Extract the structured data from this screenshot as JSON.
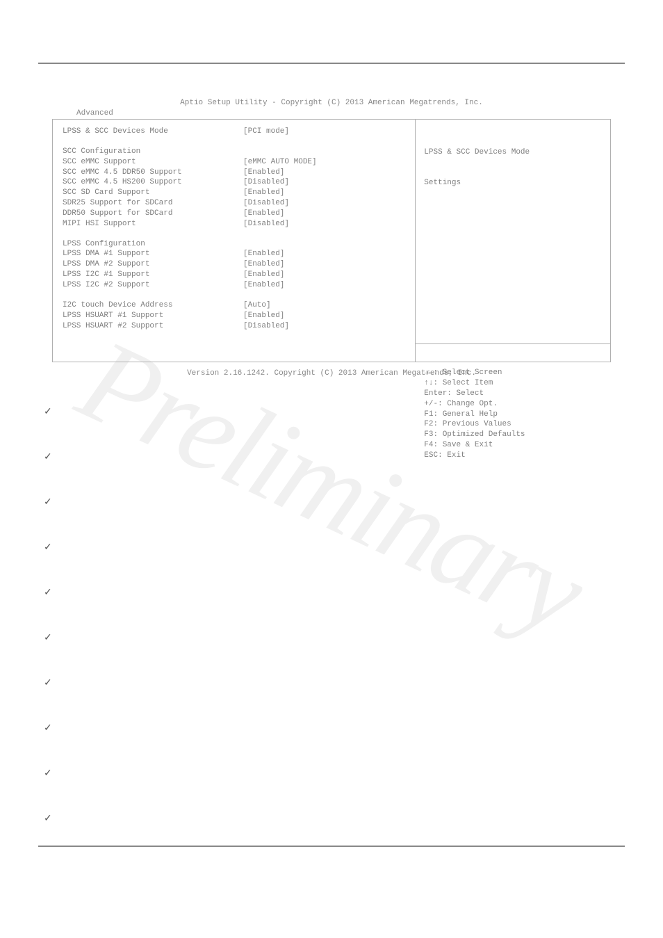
{
  "bios": {
    "title": "Aptio Setup Utility - Copyright (C) 2013 American Megatrends, Inc.",
    "tab": "Advanced",
    "version": "Version 2.16.1242. Copyright (C) 2013 American Megatrends, Inc.",
    "help_title_line1": "LPSS & SCC Devices Mode",
    "help_title_line2": "Settings",
    "rows": [
      {
        "label": "LPSS & SCC Devices Mode",
        "value": "[PCI mode]"
      },
      {
        "blank": true
      },
      {
        "label": "SCC Configuration",
        "value": ""
      },
      {
        "label": "SCC eMMC Support",
        "value": "[eMMC AUTO MODE]"
      },
      {
        "label": "SCC eMMC 4.5 DDR50 Support",
        "value": "[Enabled]"
      },
      {
        "label": "SCC eMMC 4.5 HS200 Support",
        "value": "[Disabled]"
      },
      {
        "label": "SCC SD Card Support",
        "value": "[Enabled]"
      },
      {
        "label": "SDR25 Support for SDCard",
        "value": "[Disabled]"
      },
      {
        "label": "DDR50 Support for SDCard",
        "value": "[Enabled]"
      },
      {
        "label": "MIPI HSI Support",
        "value": "[Disabled]"
      },
      {
        "blank": true
      },
      {
        "label": "LPSS Configuration",
        "value": ""
      },
      {
        "label": "LPSS DMA #1 Support",
        "value": "[Enabled]"
      },
      {
        "label": "LPSS DMA #2 Support",
        "value": "[Enabled]"
      },
      {
        "label": "LPSS I2C #1 Support",
        "value": "[Enabled]"
      },
      {
        "label": "LPSS I2C #2 Support",
        "value": "[Enabled]"
      },
      {
        "blank": true
      },
      {
        "label": "I2C touch Device Address",
        "value": "[Auto]"
      },
      {
        "label": "LPSS HSUART #1 Support",
        "value": "[Enabled]"
      },
      {
        "label": "LPSS HSUART #2 Support",
        "value": "[Disabled]"
      }
    ],
    "keyhelp": [
      "→←: Select Screen",
      "↑↓: Select Item",
      "Enter: Select",
      "+/-: Change Opt.",
      "F1: General Help",
      "F2: Previous Values",
      "F3: Optimized Defaults",
      "F4: Save & Exit",
      "ESC: Exit"
    ]
  },
  "checkmarks": [
    "✓",
    "✓",
    "✓",
    "✓",
    "✓",
    "✓",
    "✓",
    "✓",
    "✓",
    "✓"
  ],
  "watermark_text": "Preliminary",
  "colors": {
    "text": "#808080",
    "border": "#b0b0b0",
    "rule": "#888888",
    "background": "#ffffff",
    "watermark": "rgba(0,0,0,0.06)"
  }
}
